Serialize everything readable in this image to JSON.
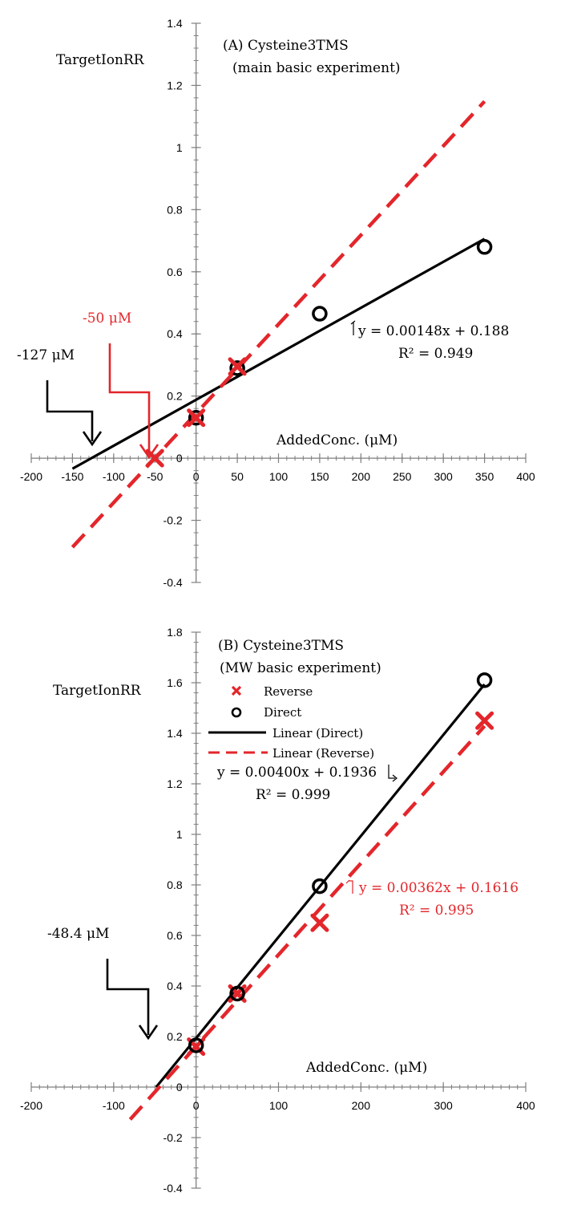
{
  "chart_data": [
    {
      "type": "scatter",
      "title": "(A) Cysteine3TMS",
      "subtitle": "(main basic experiment)",
      "xlabel": "AddedConc. (μM)",
      "ylabel": "TargetIonRR",
      "xlim": [
        -200,
        400
      ],
      "ylim": [
        -0.4,
        1.4
      ],
      "x_ticks": [
        "-200",
        "-150",
        "-100",
        "-50",
        "0",
        "50",
        "100",
        "150",
        "200",
        "250",
        "300",
        "350",
        "400"
      ],
      "y_ticks": [
        "-0.4",
        "-0.2",
        "0",
        "0.2",
        "0.4",
        "0.6",
        "0.8",
        "1",
        "1.2",
        "1.4"
      ],
      "grid": false,
      "series": [
        {
          "marker": "circle",
          "color": "#000000",
          "x": [
            0,
            50,
            150,
            350
          ],
          "y": [
            0.13,
            0.29,
            0.465,
            0.68
          ]
        },
        {
          "marker": "x",
          "color": "#e3262b",
          "x": [
            -50,
            0,
            50
          ],
          "y": [
            0.0,
            0.13,
            0.295
          ]
        }
      ],
      "fits": [
        {
          "color": "#000000",
          "dashed": false,
          "slope": 0.00148,
          "intercept": 0.188,
          "x_range": [
            -150,
            350
          ]
        },
        {
          "color": "#e3262b",
          "dashed": true,
          "slope": 0.00287,
          "intercept": 0.144,
          "x_range": [
            -150,
            350
          ]
        }
      ],
      "equations": [
        {
          "text": "y = 0.00148x + 0.188",
          "r2": "R² = 0.949",
          "color": "#000000"
        }
      ],
      "annotations": [
        {
          "text": "-127 μM",
          "color": "#000000",
          "x_value": -127
        },
        {
          "text": "-50 μM",
          "color": "#e3262b",
          "x_value": -50
        }
      ]
    },
    {
      "type": "scatter",
      "title": "(B) Cysteine3TMS",
      "subtitle": "(MW basic experiment)",
      "xlabel": "AddedConc. (μM)",
      "ylabel": "TargetIonRR",
      "xlim": [
        -200,
        400
      ],
      "ylim": [
        -0.4,
        1.8
      ],
      "x_ticks": [
        "-200",
        "-100",
        "0",
        "100",
        "200",
        "300",
        "400"
      ],
      "y_ticks": [
        "-0.4",
        "-0.2",
        "0",
        "0.2",
        "0.4",
        "0.6",
        "0.8",
        "1",
        "1.2",
        "1.4",
        "1.6",
        "1.8"
      ],
      "grid": false,
      "series": [
        {
          "marker": "x",
          "color": "#e3262b",
          "x": [
            0,
            50,
            150,
            350
          ],
          "y": [
            0.16,
            0.37,
            0.65,
            1.45
          ]
        },
        {
          "marker": "circle",
          "color": "#000000",
          "x": [
            0,
            50,
            150,
            350
          ],
          "y": [
            0.165,
            0.37,
            0.795,
            1.61
          ]
        }
      ],
      "fits": [
        {
          "color": "#000000",
          "dashed": false,
          "slope": 0.004,
          "intercept": 0.1936,
          "x_range": [
            -48.4,
            350
          ]
        },
        {
          "color": "#e3262b",
          "dashed": true,
          "slope": 0.00362,
          "intercept": 0.1616,
          "x_range": [
            -80,
            350
          ]
        }
      ],
      "legend": {
        "position": "top-left",
        "items": [
          {
            "label": "Reverse",
            "kind": "x",
            "color": "#e3262b"
          },
          {
            "label": "Direct",
            "kind": "circle",
            "color": "#000000"
          },
          {
            "label": "Linear (Direct)",
            "kind": "solid",
            "color": "#000000"
          },
          {
            "label": "Linear (Reverse)",
            "kind": "dashed",
            "color": "#e3262b"
          }
        ]
      },
      "equations": [
        {
          "text": "y = 0.00400x + 0.1936",
          "r2": "R² = 0.999",
          "color": "#000000"
        },
        {
          "text": "y = 0.00362x + 0.1616",
          "r2": "R² = 0.995",
          "color": "#e3262b"
        }
      ],
      "annotations": [
        {
          "text": "-48.4 μM",
          "color": "#000000",
          "x_value": -48.4
        }
      ]
    }
  ]
}
